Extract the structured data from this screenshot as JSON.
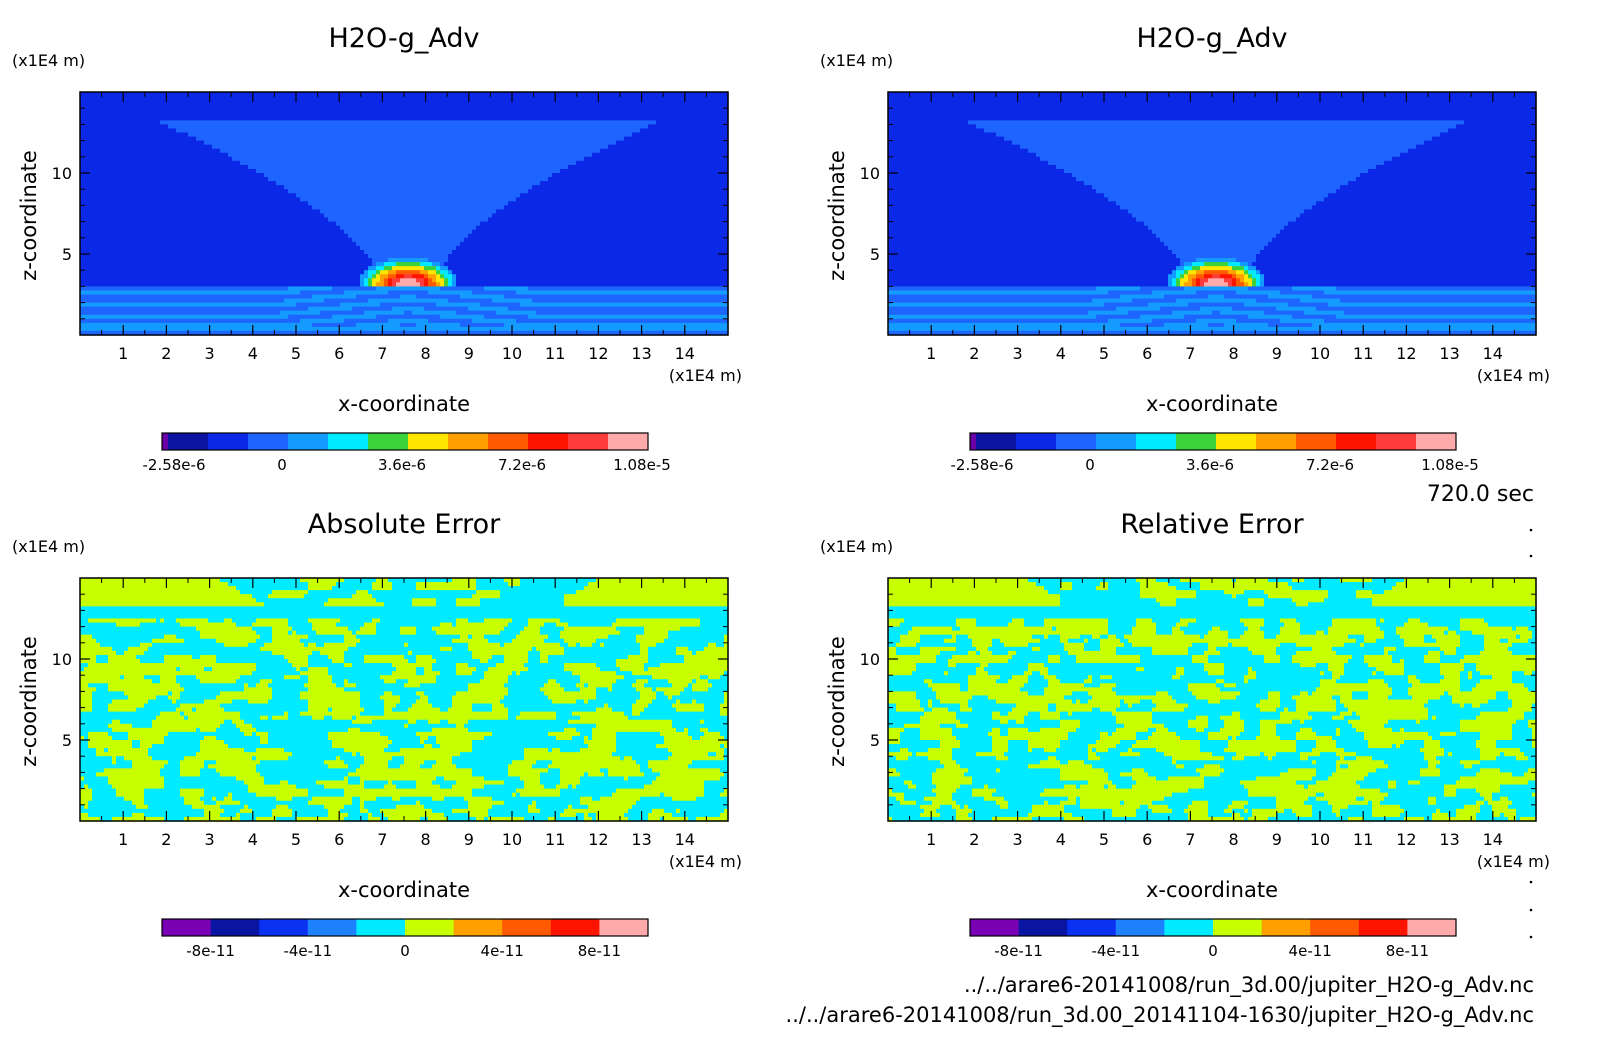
{
  "chart_data": [
    {
      "type": "heatmap",
      "title": "H2O-g_Adv",
      "xlabel": "x-coordinate",
      "ylabel": "z-coordinate",
      "x_unit": "(x1E4 m)",
      "y_unit": "(x1E4 m)",
      "xlim": [
        0,
        15
      ],
      "ylim": [
        0,
        15
      ],
      "x_ticks": [
        "1",
        "2",
        "3",
        "4",
        "5",
        "6",
        "7",
        "8",
        "9",
        "10",
        "11",
        "12",
        "13",
        "14"
      ],
      "y_ticks": [
        "5",
        "10"
      ],
      "colorbar": {
        "colors": [
          "#6a00a8",
          "#0a14a0",
          "#0a28e6",
          "#1e64ff",
          "#149bff",
          "#00ebff",
          "#3cd23c",
          "#ffe600",
          "#ffa000",
          "#ff5a00",
          "#ff1400",
          "#ff3c3c",
          "#ffaaaa"
        ],
        "tick_labels": [
          "-2.58e-6",
          "0",
          "3.6e-6",
          "7.2e-6",
          "1.08e-5"
        ],
        "tick_values": [
          -2.58e-06,
          0,
          3.6e-06,
          7.2e-06,
          1.08e-05
        ],
        "range": [
          -3.6e-06,
          1.2e-05
        ]
      },
      "features": {
        "bubble_peak": 1.08e-05,
        "bubble_center": [
          7.6,
          3.2
        ],
        "background": 0,
        "tropopause_z": 13.2
      }
    },
    {
      "type": "heatmap",
      "title": "H2O-g_Adv",
      "xlabel": "x-coordinate",
      "ylabel": "z-coordinate",
      "x_unit": "(x1E4 m)",
      "y_unit": "(x1E4 m)",
      "xlim": [
        0,
        15
      ],
      "ylim": [
        0,
        15
      ],
      "x_ticks": [
        "1",
        "2",
        "3",
        "4",
        "5",
        "6",
        "7",
        "8",
        "9",
        "10",
        "11",
        "12",
        "13",
        "14"
      ],
      "y_ticks": [
        "5",
        "10"
      ],
      "colorbar": {
        "colors": [
          "#6a00a8",
          "#0a14a0",
          "#0a28e6",
          "#1e64ff",
          "#149bff",
          "#00ebff",
          "#3cd23c",
          "#ffe600",
          "#ffa000",
          "#ff5a00",
          "#ff1400",
          "#ff3c3c",
          "#ffaaaa"
        ],
        "tick_labels": [
          "-2.58e-6",
          "0",
          "3.6e-6",
          "7.2e-6",
          "1.08e-5"
        ],
        "tick_values": [
          -2.58e-06,
          0,
          3.6e-06,
          7.2e-06,
          1.08e-05
        ],
        "range": [
          -3.6e-06,
          1.2e-05
        ]
      },
      "features": {
        "bubble_peak": 1.08e-05,
        "bubble_center": [
          7.6,
          3.2
        ],
        "background": 0,
        "tropopause_z": 13.2
      }
    },
    {
      "type": "heatmap",
      "title": "Absolute Error",
      "xlabel": "x-coordinate",
      "ylabel": "z-coordinate",
      "x_unit": "(x1E4 m)",
      "y_unit": "(x1E4 m)",
      "xlim": [
        0,
        15
      ],
      "ylim": [
        0,
        15
      ],
      "x_ticks": [
        "1",
        "2",
        "3",
        "4",
        "5",
        "6",
        "7",
        "8",
        "9",
        "10",
        "11",
        "12",
        "13",
        "14"
      ],
      "y_ticks": [
        "5",
        "10"
      ],
      "colorbar": {
        "colors": [
          "#7a00b4",
          "#0a14a0",
          "#0a32f0",
          "#1e82ff",
          "#00ebff",
          "#c8ff00",
          "#ffa000",
          "#ff5a00",
          "#ff1400",
          "#ffaaaa"
        ],
        "tick_labels": [
          "-8e-11",
          "-4e-11",
          "0",
          "4e-11",
          "8e-11"
        ],
        "tick_values": [
          -8e-11,
          -4e-11,
          0,
          4e-11,
          8e-11
        ],
        "range": [
          -1e-10,
          1e-10
        ]
      },
      "features": {
        "pattern": "noise",
        "seed": 11
      }
    },
    {
      "type": "heatmap",
      "title": "Relative Error",
      "xlabel": "x-coordinate",
      "ylabel": "z-coordinate",
      "x_unit": "(x1E4 m)",
      "y_unit": "(x1E4 m)",
      "xlim": [
        0,
        15
      ],
      "ylim": [
        0,
        15
      ],
      "x_ticks": [
        "1",
        "2",
        "3",
        "4",
        "5",
        "6",
        "7",
        "8",
        "9",
        "10",
        "11",
        "12",
        "13",
        "14"
      ],
      "y_ticks": [
        "5",
        "10"
      ],
      "colorbar": {
        "colors": [
          "#7a00b4",
          "#0a14a0",
          "#0a32f0",
          "#1e82ff",
          "#00ebff",
          "#c8ff00",
          "#ffa000",
          "#ff5a00",
          "#ff1400",
          "#ffaaaa"
        ],
        "tick_labels": [
          "-8e-11",
          "-4e-11",
          "0",
          "4e-11",
          "8e-11"
        ],
        "tick_values": [
          -8e-11,
          -4e-11,
          0,
          4e-11,
          8e-11
        ],
        "range": [
          -1e-10,
          1e-10
        ]
      },
      "features": {
        "pattern": "noise",
        "seed": 23
      }
    }
  ],
  "time_label": "720.0 sec",
  "file_paths": [
    "../../arare6-20141008/run_3d.00/jupiter_H2O-g_Adv.nc",
    "../../arare6-20141008/run_3d.00_20141104-1630/jupiter_H2O-g_Adv.nc"
  ]
}
